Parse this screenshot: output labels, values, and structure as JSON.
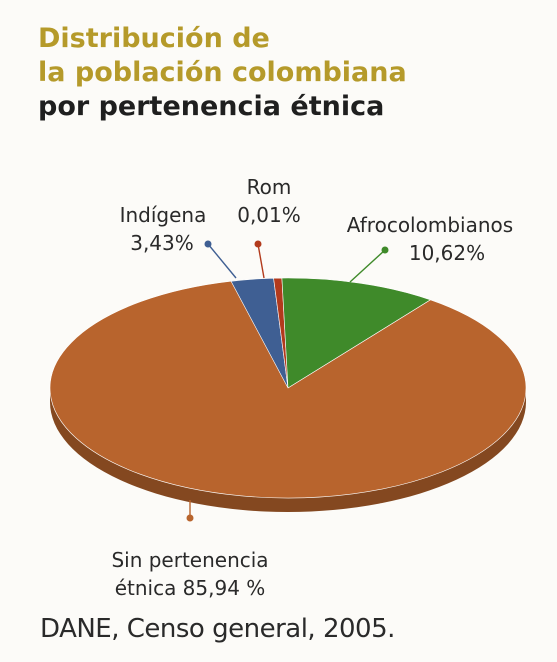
{
  "title": {
    "line1": "Distribución de",
    "line2": "la población colombiana",
    "line3": "por pertenencia étnica"
  },
  "chart_data": {
    "type": "pie",
    "title": "Distribución de la población colombiana por pertenencia étnica",
    "unit": "%",
    "slices": [
      {
        "label_lines": [
          "Sin pertenencia",
          "étnica 85,94 %"
        ],
        "value": 85.94,
        "color": "#b8642d"
      },
      {
        "label_lines": [
          "Indígena",
          "3,43%"
        ],
        "value": 3.43,
        "color": "#3f5f93"
      },
      {
        "label_lines": [
          "Rom",
          "0,01%"
        ],
        "value": 0.01,
        "color": "#b23a1c"
      },
      {
        "label_lines": [
          "Afrocolombianos",
          "10,62%"
        ],
        "value": 10.62,
        "color": "#3f8a2a"
      }
    ]
  },
  "source": "DANE, Censo general, 2005."
}
